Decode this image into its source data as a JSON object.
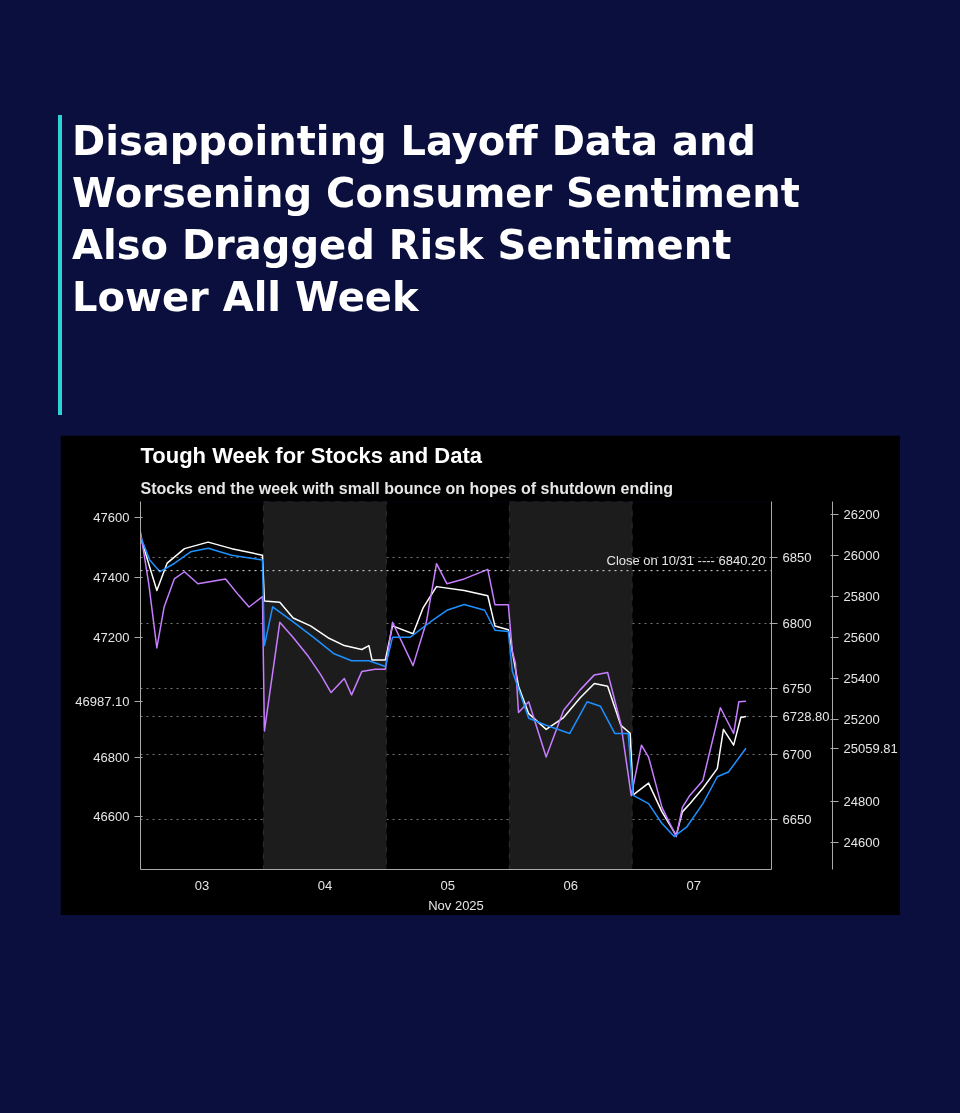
{
  "chart_data": {
    "type": "line",
    "title": "Tough Week for Stocks and Data",
    "subtitle": "Stocks end the week with small bounce on hopes of shutdown ending",
    "xlabel": "Nov 2025",
    "annotations": [
      "Disappointing Layoff Data and Worsening Consumer Sentiment Also Dragged Risk Sentiment Lower All Week"
    ],
    "xlim": [
      2.5,
      7.633
    ],
    "xticks": [
      {
        "value": 3,
        "label": "03"
      },
      {
        "value": 4,
        "label": "04"
      },
      {
        "value": 5,
        "label": "05"
      },
      {
        "value": 6,
        "label": "06"
      },
      {
        "value": 7,
        "label": "07"
      }
    ],
    "ylim": [
      6612,
      6893
    ],
    "yticks": [
      6650,
      6700,
      {
        "value": 6728.8,
        "label": "6728.80"
      },
      6750,
      6800,
      6850
    ],
    "y2lim": [
      46424,
      47655
    ],
    "y2ticks": [
      46600,
      46800,
      {
        "value": 46987.1,
        "label": "46987.10"
      },
      47200,
      47400,
      47600
    ],
    "y3lim": [
      24469,
      26262
    ],
    "y3ticks": [
      24600,
      24800,
      {
        "value": 25059.81,
        "label": "25059.81"
      },
      25200,
      25400,
      25600,
      25800,
      26000,
      26200
    ],
    "grid": "y",
    "line_style": "solid",
    "bands": [
      {
        "axis": "x",
        "from": 3.5,
        "to": 4.5,
        "color": "#1c1c1c"
      },
      {
        "axis": "x",
        "from": 5.5,
        "to": 6.5,
        "color": "#1c1c1c"
      }
    ],
    "ref_lines": [
      {
        "axis": "y",
        "value": 6840.2,
        "label": "Close on 10/31 ---- 6840.20",
        "color": "#dddddd",
        "line_style": "dotted"
      }
    ],
    "series": [
      {
        "color": "#ffffff",
        "axis": "y",
        "x": [
          2.5,
          2.633,
          2.717,
          2.858,
          3.05,
          3.242,
          3.492,
          3.508,
          3.633,
          3.742,
          3.883,
          4.025,
          4.158,
          4.3,
          4.358,
          4.383,
          4.492,
          4.55,
          4.717,
          4.8,
          4.908,
          5.133,
          5.325,
          5.383,
          5.492,
          5.508,
          5.575,
          5.658,
          5.8,
          5.942,
          6.075,
          6.192,
          6.3,
          6.408,
          6.483,
          6.508,
          6.633,
          6.742,
          6.858,
          6.908,
          6.967,
          7.075,
          7.192,
          7.242,
          7.325,
          7.383,
          7.425
        ],
        "values": [
          6866,
          6825,
          6846,
          6857,
          6862,
          6857,
          6852,
          6817,
          6816,
          6804,
          6798,
          6789,
          6783,
          6780,
          6783,
          6772,
          6772,
          6798,
          6792,
          6812,
          6828,
          6825,
          6821,
          6798,
          6795,
          6787,
          6752,
          6731,
          6719,
          6728,
          6743,
          6754,
          6752,
          6722,
          6716,
          6669,
          6678,
          6656,
          6638,
          6656,
          6662,
          6674,
          6689,
          6719,
          6707,
          6728,
          6728.8
        ]
      },
      {
        "color": "#c77dff",
        "axis": "y2",
        "x": [
          2.5,
          2.567,
          2.633,
          2.692,
          2.775,
          2.858,
          2.967,
          3.192,
          3.3,
          3.383,
          3.492,
          3.508,
          3.633,
          3.742,
          3.858,
          3.967,
          4.05,
          4.158,
          4.217,
          4.3,
          4.408,
          4.492,
          4.55,
          4.717,
          4.825,
          4.908,
          4.992,
          5.133,
          5.325,
          5.383,
          5.492,
          5.525,
          5.55,
          5.575,
          5.658,
          5.8,
          5.942,
          6.075,
          6.192,
          6.3,
          6.408,
          6.492,
          6.575,
          6.633,
          6.742,
          6.858,
          6.908,
          6.967,
          7.075,
          7.217,
          7.325,
          7.367,
          7.425
        ],
        "values": [
          47553,
          47380,
          47165,
          47302,
          47396,
          47420,
          47380,
          47396,
          47341,
          47302,
          47337,
          46887,
          47251,
          47200,
          47141,
          47075,
          47016,
          47063,
          47008,
          47086,
          47094,
          47094,
          47251,
          47106,
          47251,
          47447,
          47380,
          47396,
          47428,
          47310,
          47310,
          47153,
          47114,
          46949,
          46985,
          46800,
          46957,
          47024,
          47075,
          47083,
          46910,
          46671,
          46840,
          46800,
          46632,
          46534,
          46632,
          46671,
          46722,
          46965,
          46879,
          46985,
          46987.1
        ]
      },
      {
        "color": "#1e90ff",
        "axis": "y3",
        "x": [
          2.5,
          2.575,
          2.658,
          2.775,
          2.908,
          3.05,
          3.242,
          3.492,
          3.508,
          3.575,
          3.742,
          3.908,
          4.075,
          4.217,
          4.358,
          4.492,
          4.55,
          4.692,
          4.858,
          4.992,
          5.133,
          5.3,
          5.383,
          5.492,
          5.525,
          5.658,
          5.8,
          5.992,
          6.133,
          6.242,
          6.358,
          6.467,
          6.508,
          6.633,
          6.742,
          6.842,
          6.942,
          7.075,
          7.192,
          7.283,
          7.425
        ],
        "values": [
          26092,
          25977,
          25920,
          25960,
          26017,
          26034,
          26000,
          25977,
          25560,
          25749,
          25675,
          25600,
          25520,
          25486,
          25486,
          25458,
          25600,
          25600,
          25675,
          25732,
          25760,
          25732,
          25635,
          25629,
          25435,
          25206,
          25172,
          25132,
          25286,
          25264,
          25132,
          25132,
          24830,
          24790,
          24693,
          24630,
          24675,
          24790,
          24921,
          24944,
          25059.81
        ]
      }
    ]
  }
}
